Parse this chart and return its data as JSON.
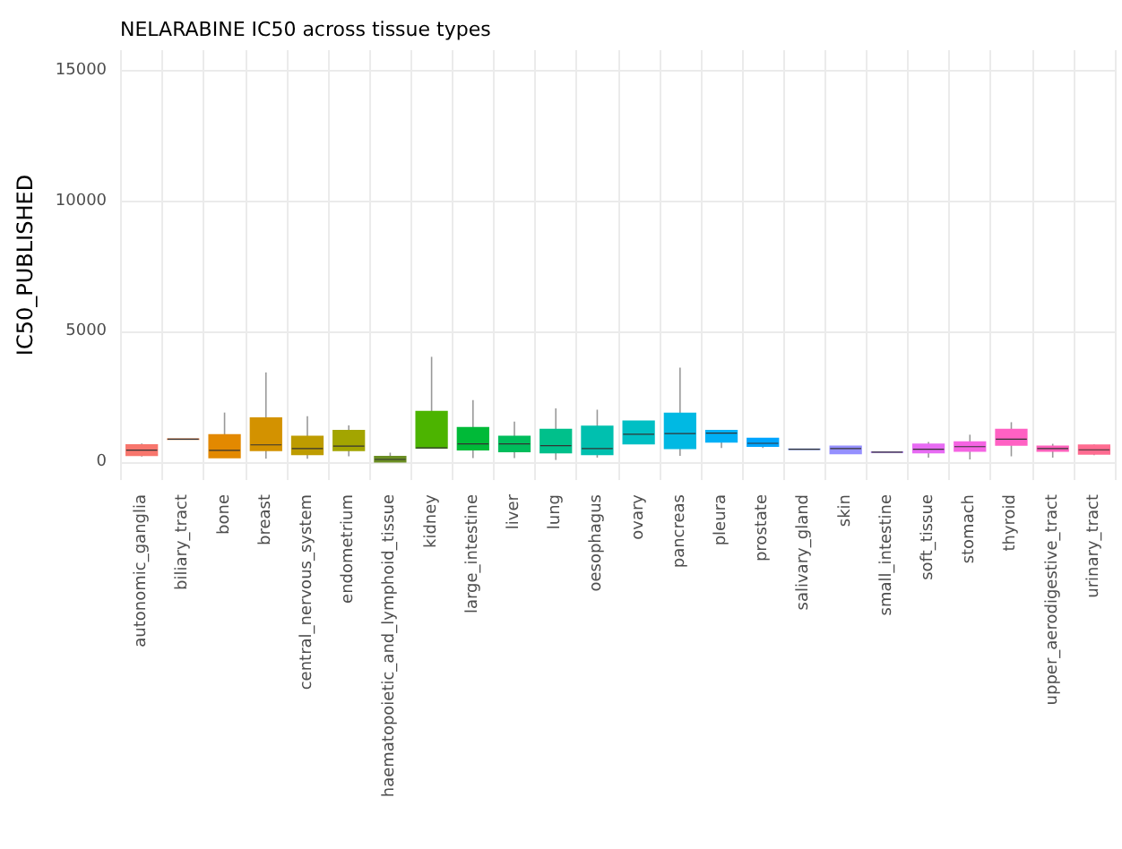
{
  "chart_data": {
    "type": "box",
    "title": "NELARABINE IC50 across tissue types",
    "ylabel": "IC50_PUBLISHED",
    "categories": [
      "autonomic_ganglia",
      "biliary_tract",
      "bone",
      "breast",
      "central_nervous_system",
      "endometrium",
      "haematopoietic_and_lymphoid_tissue",
      "kidney",
      "large_intestine",
      "liver",
      "lung",
      "oesophagus",
      "ovary",
      "pancreas",
      "pleura",
      "prostate",
      "salivary_gland",
      "skin",
      "small_intestine",
      "soft_tissue",
      "stomach",
      "thyroid",
      "upper_aerodigestive_tract",
      "urinary_tract"
    ],
    "boxes": [
      {
        "low": 200,
        "q1": 250,
        "median": 450,
        "q3": 650,
        "high": 700
      },
      {
        "low": 870,
        "q1": 870,
        "median": 870,
        "q3": 870,
        "high": 870
      },
      {
        "low": 160,
        "q1": 160,
        "median": 440,
        "q3": 1035,
        "high": 1890
      },
      {
        "low": 120,
        "q1": 440,
        "median": 650,
        "q3": 1680,
        "high": 3430
      },
      {
        "low": 120,
        "q1": 280,
        "median": 510,
        "q3": 970,
        "high": 1750
      },
      {
        "low": 210,
        "q1": 440,
        "median": 600,
        "q3": 1200,
        "high": 1400
      },
      {
        "low": 0,
        "q1": 0,
        "median": 90,
        "q3": 200,
        "high": 350
      },
      {
        "low": 530,
        "q1": 530,
        "median": 530,
        "q3": 1930,
        "high": 4030
      },
      {
        "low": 140,
        "q1": 460,
        "median": 690,
        "q3": 1310,
        "high": 2370
      },
      {
        "low": 140,
        "q1": 390,
        "median": 690,
        "q3": 970,
        "high": 1540
      },
      {
        "low": 70,
        "q1": 350,
        "median": 620,
        "q3": 1240,
        "high": 2050
      },
      {
        "low": 160,
        "q1": 280,
        "median": 510,
        "q3": 1360,
        "high": 2000
      },
      {
        "low": 690,
        "q1": 690,
        "median": 1060,
        "q3": 1560,
        "high": 1560
      },
      {
        "low": 230,
        "q1": 510,
        "median": 1080,
        "q3": 1860,
        "high": 3610
      },
      {
        "low": 530,
        "q1": 760,
        "median": 1100,
        "q3": 1200,
        "high": 1200
      },
      {
        "low": 530,
        "q1": 600,
        "median": 710,
        "q3": 900,
        "high": 900
      },
      {
        "low": 480,
        "q1": 480,
        "median": 480,
        "q3": 480,
        "high": 480
      },
      {
        "low": 320,
        "q1": 320,
        "median": 510,
        "q3": 600,
        "high": 600
      },
      {
        "low": 370,
        "q1": 370,
        "median": 370,
        "q3": 370,
        "high": 370
      },
      {
        "low": 160,
        "q1": 350,
        "median": 480,
        "q3": 670,
        "high": 760
      },
      {
        "low": 90,
        "q1": 410,
        "median": 580,
        "q3": 760,
        "high": 1040
      },
      {
        "low": 210,
        "q1": 640,
        "median": 870,
        "q3": 1240,
        "high": 1520
      },
      {
        "low": 160,
        "q1": 410,
        "median": 510,
        "q3": 600,
        "high": 690
      },
      {
        "low": 250,
        "q1": 300,
        "median": 460,
        "q3": 640,
        "high": 670
      }
    ],
    "colors": [
      "#F8766D",
      "#EE8044",
      "#E38900",
      "#D39200",
      "#BE9C00",
      "#A3A500",
      "#6B8E23",
      "#4CB400",
      "#00BA38",
      "#00BD5C",
      "#00C08B",
      "#00C0AF",
      "#00BFC4",
      "#00B9E3",
      "#00B0F6",
      "#00A5FF",
      "#7997FF",
      "#9590FF",
      "#B983FF",
      "#E76BF3",
      "#F564E3",
      "#FF61C3",
      "#FF62BC",
      "#FF6C91"
    ],
    "ylim": [
      -700,
      15800
    ],
    "yticks": [
      0,
      5000,
      10000,
      15000
    ],
    "grid": true
  }
}
